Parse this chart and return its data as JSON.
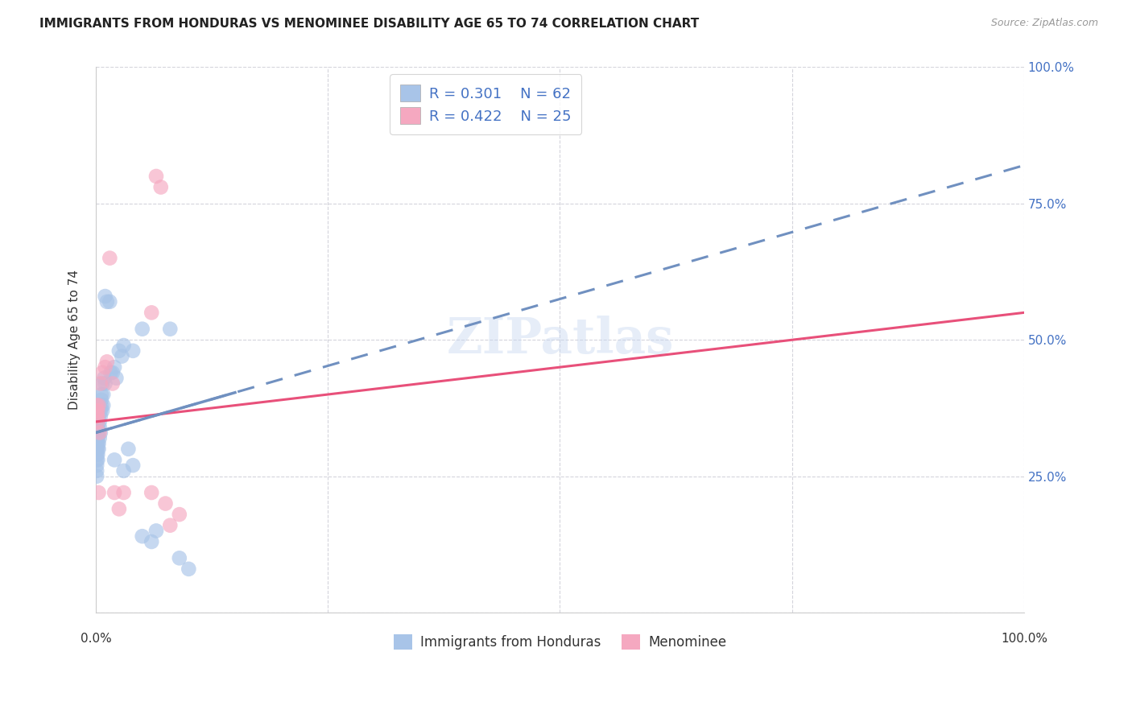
{
  "title": "IMMIGRANTS FROM HONDURAS VS MENOMINEE DISABILITY AGE 65 TO 74 CORRELATION CHART",
  "source": "Source: ZipAtlas.com",
  "ylabel": "Disability Age 65 to 74",
  "legend_blue_r": "R = 0.301",
  "legend_blue_n": "N = 62",
  "legend_pink_r": "R = 0.422",
  "legend_pink_n": "N = 25",
  "blue_color": "#a8c4e8",
  "pink_color": "#f5a8c0",
  "trendline_blue_color": "#7090c0",
  "trendline_pink_color": "#e8507a",
  "watermark": "ZIPatlas",
  "blue_points": [
    [
      0.001,
      0.3
    ],
    [
      0.001,
      0.33
    ],
    [
      0.001,
      0.36
    ],
    [
      0.001,
      0.29
    ],
    [
      0.001,
      0.28
    ],
    [
      0.001,
      0.27
    ],
    [
      0.001,
      0.26
    ],
    [
      0.001,
      0.25
    ],
    [
      0.001,
      0.32
    ],
    [
      0.001,
      0.31
    ],
    [
      0.001,
      0.34
    ],
    [
      0.001,
      0.35
    ],
    [
      0.002,
      0.3
    ],
    [
      0.002,
      0.31
    ],
    [
      0.002,
      0.32
    ],
    [
      0.002,
      0.33
    ],
    [
      0.002,
      0.34
    ],
    [
      0.002,
      0.35
    ],
    [
      0.002,
      0.28
    ],
    [
      0.002,
      0.29
    ],
    [
      0.003,
      0.3
    ],
    [
      0.003,
      0.31
    ],
    [
      0.003,
      0.36
    ],
    [
      0.003,
      0.33
    ],
    [
      0.004,
      0.32
    ],
    [
      0.004,
      0.38
    ],
    [
      0.004,
      0.35
    ],
    [
      0.004,
      0.34
    ],
    [
      0.005,
      0.36
    ],
    [
      0.005,
      0.33
    ],
    [
      0.005,
      0.37
    ],
    [
      0.006,
      0.39
    ],
    [
      0.006,
      0.4
    ],
    [
      0.006,
      0.38
    ],
    [
      0.007,
      0.37
    ],
    [
      0.007,
      0.42
    ],
    [
      0.008,
      0.4
    ],
    [
      0.008,
      0.38
    ],
    [
      0.009,
      0.43
    ],
    [
      0.01,
      0.42
    ],
    [
      0.01,
      0.58
    ],
    [
      0.012,
      0.57
    ],
    [
      0.015,
      0.57
    ],
    [
      0.016,
      0.44
    ],
    [
      0.018,
      0.44
    ],
    [
      0.02,
      0.45
    ],
    [
      0.02,
      0.28
    ],
    [
      0.022,
      0.43
    ],
    [
      0.025,
      0.48
    ],
    [
      0.028,
      0.47
    ],
    [
      0.03,
      0.49
    ],
    [
      0.03,
      0.26
    ],
    [
      0.035,
      0.3
    ],
    [
      0.04,
      0.48
    ],
    [
      0.04,
      0.27
    ],
    [
      0.05,
      0.52
    ],
    [
      0.05,
      0.14
    ],
    [
      0.06,
      0.13
    ],
    [
      0.065,
      0.15
    ],
    [
      0.08,
      0.52
    ],
    [
      0.09,
      0.1
    ],
    [
      0.1,
      0.08
    ]
  ],
  "pink_points": [
    [
      0.001,
      0.38
    ],
    [
      0.001,
      0.37
    ],
    [
      0.001,
      0.36
    ],
    [
      0.002,
      0.37
    ],
    [
      0.002,
      0.36
    ],
    [
      0.002,
      0.35
    ],
    [
      0.003,
      0.38
    ],
    [
      0.003,
      0.22
    ],
    [
      0.004,
      0.33
    ],
    [
      0.005,
      0.42
    ],
    [
      0.007,
      0.44
    ],
    [
      0.01,
      0.45
    ],
    [
      0.012,
      0.46
    ],
    [
      0.015,
      0.65
    ],
    [
      0.018,
      0.42
    ],
    [
      0.02,
      0.22
    ],
    [
      0.025,
      0.19
    ],
    [
      0.03,
      0.22
    ],
    [
      0.06,
      0.55
    ],
    [
      0.06,
      0.22
    ],
    [
      0.065,
      0.8
    ],
    [
      0.07,
      0.78
    ],
    [
      0.075,
      0.2
    ],
    [
      0.08,
      0.16
    ],
    [
      0.09,
      0.18
    ]
  ],
  "xlim": [
    0,
    1.0
  ],
  "ylim": [
    0,
    1.0
  ],
  "background_color": "#ffffff",
  "grid_color": "#d0d0d8",
  "trendline_blue_y0": 0.33,
  "trendline_blue_y1": 0.82,
  "trendline_pink_y0": 0.35,
  "trendline_pink_y1": 0.55
}
